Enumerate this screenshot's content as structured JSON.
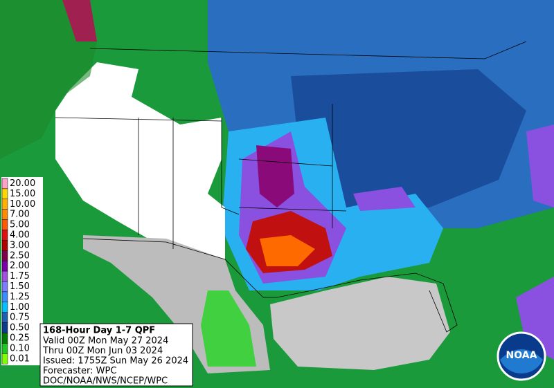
{
  "legend": {
    "items": [
      {
        "label": "20.00",
        "color": "#ffa0c8"
      },
      {
        "label": "15.00",
        "color": "#ffd700"
      },
      {
        "label": "10.00",
        "color": "#ffb000"
      },
      {
        "label": "7.00",
        "color": "#ff8c00"
      },
      {
        "label": "5.00",
        "color": "#ff5a00"
      },
      {
        "label": "4.00",
        "color": "#e01010"
      },
      {
        "label": "3.00",
        "color": "#b00000"
      },
      {
        "label": "2.50",
        "color": "#80004a"
      },
      {
        "label": "2.00",
        "color": "#7a00a8"
      },
      {
        "label": "1.75",
        "color": "#a050e0"
      },
      {
        "label": "1.50",
        "color": "#7c7cff"
      },
      {
        "label": "1.25",
        "color": "#3c8cff"
      },
      {
        "label": "1.00",
        "color": "#00c0ff"
      },
      {
        "label": "0.75",
        "color": "#2060b0"
      },
      {
        "label": "0.50",
        "color": "#0c3c8c"
      },
      {
        "label": "0.25",
        "color": "#007a00"
      },
      {
        "label": "0.10",
        "color": "#1ec81e"
      },
      {
        "label": "0.01",
        "color": "#80ff00"
      }
    ]
  },
  "info": {
    "title": "168-Hour Day 1-7 QPF",
    "lines": [
      "Valid 00Z Mon May 27 2024",
      "Thru 00Z Mon Jun 03 2024",
      "Issued: 1755Z Sun May 26 2024",
      "Forecaster: WPC",
      "DOC/NOAA/NWS/NCEP/WPC"
    ]
  },
  "logo": {
    "text": "NOAA"
  }
}
